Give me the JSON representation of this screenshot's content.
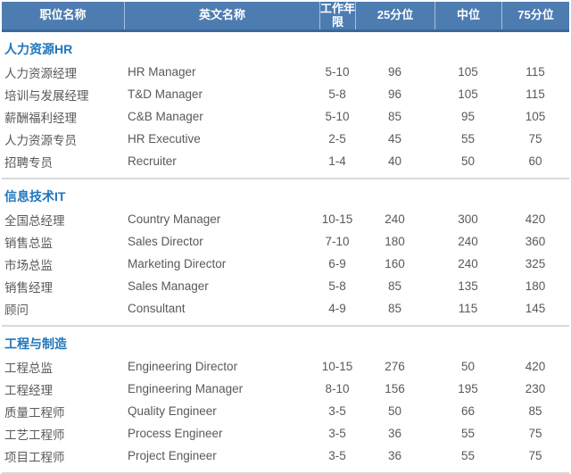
{
  "table": {
    "columns": [
      {
        "key": "title_cn",
        "label": "职位名称"
      },
      {
        "key": "title_en",
        "label": "英文名称"
      },
      {
        "key": "years",
        "label": "工作年限"
      },
      {
        "key": "p25",
        "label": "25分位"
      },
      {
        "key": "median",
        "label": "中位"
      },
      {
        "key": "p75",
        "label": "75分位"
      }
    ],
    "sections": [
      {
        "name": "人力资源HR",
        "rows": [
          {
            "title_cn": "人力资源经理",
            "title_en": "HR Manager",
            "years": "5-10",
            "p25": "96",
            "median": "105",
            "p75": "115"
          },
          {
            "title_cn": "培训与发展经理",
            "title_en": "T&D Manager",
            "years": "5-8",
            "p25": "96",
            "median": "105",
            "p75": "115"
          },
          {
            "title_cn": "薪酬福利经理",
            "title_en": "C&B Manager",
            "years": "5-10",
            "p25": "85",
            "median": "95",
            "p75": "105"
          },
          {
            "title_cn": "人力资源专员",
            "title_en": "HR Executive",
            "years": "2-5",
            "p25": "45",
            "median": "55",
            "p75": "75"
          },
          {
            "title_cn": "招聘专员",
            "title_en": "Recruiter",
            "years": "1-4",
            "p25": "40",
            "median": "50",
            "p75": "60"
          }
        ]
      },
      {
        "name": "信息技术IT",
        "rows": [
          {
            "title_cn": "全国总经理",
            "title_en": "Country Manager",
            "years": "10-15",
            "p25": "240",
            "median": "300",
            "p75": "420"
          },
          {
            "title_cn": "销售总监",
            "title_en": "Sales Director",
            "years": "7-10",
            "p25": "180",
            "median": "240",
            "p75": "360"
          },
          {
            "title_cn": "市场总监",
            "title_en": "Marketing Director",
            "years": "6-9",
            "p25": "160",
            "median": "240",
            "p75": "325"
          },
          {
            "title_cn": "销售经理",
            "title_en": "Sales Manager",
            "years": "5-8",
            "p25": "85",
            "median": "135",
            "p75": "180"
          },
          {
            "title_cn": "顾问",
            "title_en": "Consultant",
            "years": "4-9",
            "p25": "85",
            "median": "115",
            "p75": "145"
          }
        ]
      },
      {
        "name": "工程与制造",
        "rows": [
          {
            "title_cn": "工程总监",
            "title_en": "Engineering Director",
            "years": "10-15",
            "p25": "276",
            "median": "50",
            "p75": "420"
          },
          {
            "title_cn": "工程经理",
            "title_en": "Engineering Manager",
            "years": "8-10",
            "p25": "156",
            "median": "195",
            "p75": "230"
          },
          {
            "title_cn": "质量工程师",
            "title_en": "Quality Engineer",
            "years": "3-5",
            "p25": "50",
            "median": "66",
            "p75": "85"
          },
          {
            "title_cn": "工艺工程师",
            "title_en": "Process Engineer",
            "years": "3-5",
            "p25": "36",
            "median": "55",
            "p75": "75"
          },
          {
            "title_cn": "项目工程师",
            "title_en": "Project Engineer",
            "years": "3-5",
            "p25": "36",
            "median": "55",
            "p75": "75"
          }
        ]
      }
    ]
  },
  "colors": {
    "header_bg": "#4d7cb1",
    "header_bottom_border": "#3a679c",
    "header_text": "#ffffff",
    "section_title_text": "#1e76bd",
    "body_text": "#595959",
    "separator": "#d9d9d9"
  }
}
